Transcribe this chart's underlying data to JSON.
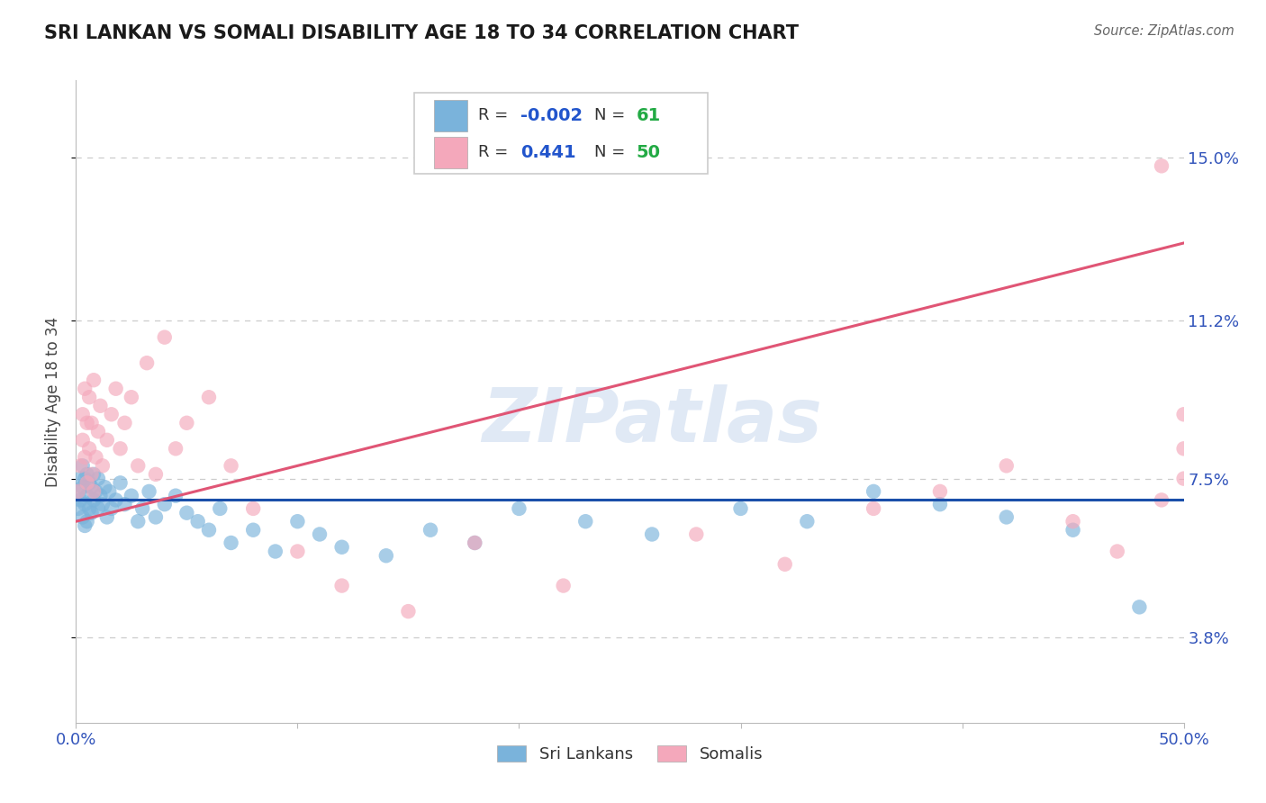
{
  "title": "SRI LANKAN VS SOMALI DISABILITY AGE 18 TO 34 CORRELATION CHART",
  "source": "Source: ZipAtlas.com",
  "ylabel": "Disability Age 18 to 34",
  "xlim": [
    0.0,
    0.5
  ],
  "ylim": [
    0.018,
    0.168
  ],
  "yticks": [
    0.038,
    0.075,
    0.112,
    0.15
  ],
  "ytick_labels": [
    "3.8%",
    "7.5%",
    "11.2%",
    "15.0%"
  ],
  "xticks": [
    0.0,
    0.1,
    0.2,
    0.3,
    0.4,
    0.5
  ],
  "xtick_labels": [
    "0.0%",
    "",
    "",
    "",
    "",
    "50.0%"
  ],
  "sri_lankan_R": -0.002,
  "sri_lankan_N": 61,
  "somali_R": 0.441,
  "somali_N": 50,
  "sri_lankan_color": "#7ab3db",
  "somali_color": "#f4a8bb",
  "sri_lankan_line_color": "#1a4faa",
  "somali_line_color": "#e05575",
  "watermark_text": "ZIPatlas",
  "background_color": "#ffffff",
  "grid_color": "#cccccc",
  "title_color": "#1a1a1a",
  "axis_label_color": "#444444",
  "tick_color_blue": "#3355bb",
  "legend_R_color": "#2255cc",
  "legend_N_color": "#22aa44",
  "sri_lankans_x": [
    0.001,
    0.001,
    0.002,
    0.002,
    0.003,
    0.003,
    0.003,
    0.004,
    0.004,
    0.004,
    0.005,
    0.005,
    0.005,
    0.006,
    0.006,
    0.007,
    0.007,
    0.008,
    0.008,
    0.009,
    0.01,
    0.01,
    0.011,
    0.012,
    0.013,
    0.014,
    0.015,
    0.016,
    0.018,
    0.02,
    0.022,
    0.025,
    0.028,
    0.03,
    0.033,
    0.036,
    0.04,
    0.045,
    0.05,
    0.055,
    0.06,
    0.065,
    0.07,
    0.08,
    0.09,
    0.1,
    0.11,
    0.12,
    0.14,
    0.16,
    0.18,
    0.2,
    0.23,
    0.26,
    0.3,
    0.33,
    0.36,
    0.39,
    0.42,
    0.45,
    0.48
  ],
  "sri_lankans_y": [
    0.072,
    0.068,
    0.075,
    0.07,
    0.078,
    0.073,
    0.066,
    0.075,
    0.069,
    0.064,
    0.076,
    0.071,
    0.065,
    0.074,
    0.068,
    0.073,
    0.067,
    0.076,
    0.07,
    0.072,
    0.075,
    0.068,
    0.071,
    0.069,
    0.073,
    0.066,
    0.072,
    0.068,
    0.07,
    0.074,
    0.069,
    0.071,
    0.065,
    0.068,
    0.072,
    0.066,
    0.069,
    0.071,
    0.067,
    0.065,
    0.063,
    0.068,
    0.06,
    0.063,
    0.058,
    0.065,
    0.062,
    0.059,
    0.057,
    0.063,
    0.06,
    0.068,
    0.065,
    0.062,
    0.068,
    0.065,
    0.072,
    0.069,
    0.066,
    0.063,
    0.045
  ],
  "somalis_x": [
    0.001,
    0.002,
    0.003,
    0.003,
    0.004,
    0.004,
    0.005,
    0.005,
    0.006,
    0.006,
    0.007,
    0.007,
    0.008,
    0.008,
    0.009,
    0.01,
    0.011,
    0.012,
    0.014,
    0.016,
    0.018,
    0.02,
    0.022,
    0.025,
    0.028,
    0.032,
    0.036,
    0.04,
    0.045,
    0.05,
    0.06,
    0.07,
    0.08,
    0.1,
    0.12,
    0.15,
    0.18,
    0.22,
    0.28,
    0.32,
    0.36,
    0.39,
    0.42,
    0.45,
    0.47,
    0.49,
    0.5,
    0.5,
    0.5,
    0.49
  ],
  "somalis_y": [
    0.072,
    0.078,
    0.084,
    0.09,
    0.096,
    0.08,
    0.088,
    0.074,
    0.082,
    0.094,
    0.076,
    0.088,
    0.072,
    0.098,
    0.08,
    0.086,
    0.092,
    0.078,
    0.084,
    0.09,
    0.096,
    0.082,
    0.088,
    0.094,
    0.078,
    0.102,
    0.076,
    0.108,
    0.082,
    0.088,
    0.094,
    0.078,
    0.068,
    0.058,
    0.05,
    0.044,
    0.06,
    0.05,
    0.062,
    0.055,
    0.068,
    0.072,
    0.078,
    0.065,
    0.058,
    0.07,
    0.075,
    0.082,
    0.09,
    0.148
  ]
}
